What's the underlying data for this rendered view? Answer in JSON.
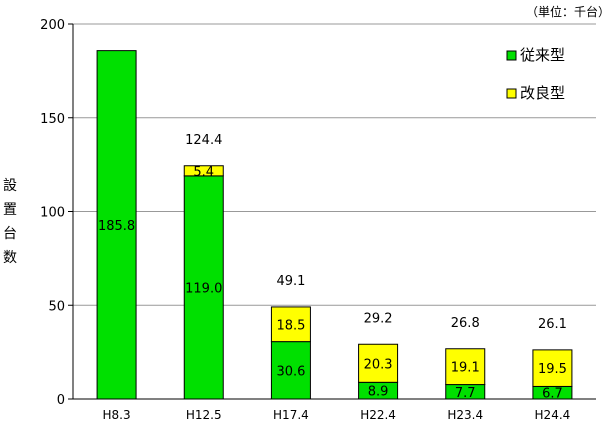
{
  "chart_data": {
    "type": "bar",
    "stacked": true,
    "unit_note": "（単位：千台）",
    "ylabel": [
      "設",
      "置",
      "台",
      "数"
    ],
    "ylim": [
      0,
      200
    ],
    "yticks": [
      "0",
      "50",
      "100",
      "150",
      "200"
    ],
    "categories": [
      "H8.3",
      "H12.5",
      "H17.4",
      "H22.4",
      "H23.4",
      "H24.4"
    ],
    "series": [
      {
        "name": "従来型",
        "color": "#00e000",
        "values": [
          185.8,
          119.0,
          30.6,
          8.9,
          7.7,
          6.7
        ],
        "labels": [
          "185.8",
          "119.0",
          "30.6",
          "8.9",
          "7.7",
          "6.7"
        ]
      },
      {
        "name": "改良型",
        "color": "#ffff00",
        "values": [
          0,
          5.4,
          18.5,
          20.3,
          19.1,
          19.5
        ],
        "labels": [
          "",
          "5.4",
          "18.5",
          "20.3",
          "19.1",
          "19.5"
        ]
      }
    ],
    "totals": [
      "",
      "124.4",
      "49.1",
      "29.2",
      "26.8",
      "26.1"
    ],
    "grid": true,
    "legend": "top-right"
  }
}
